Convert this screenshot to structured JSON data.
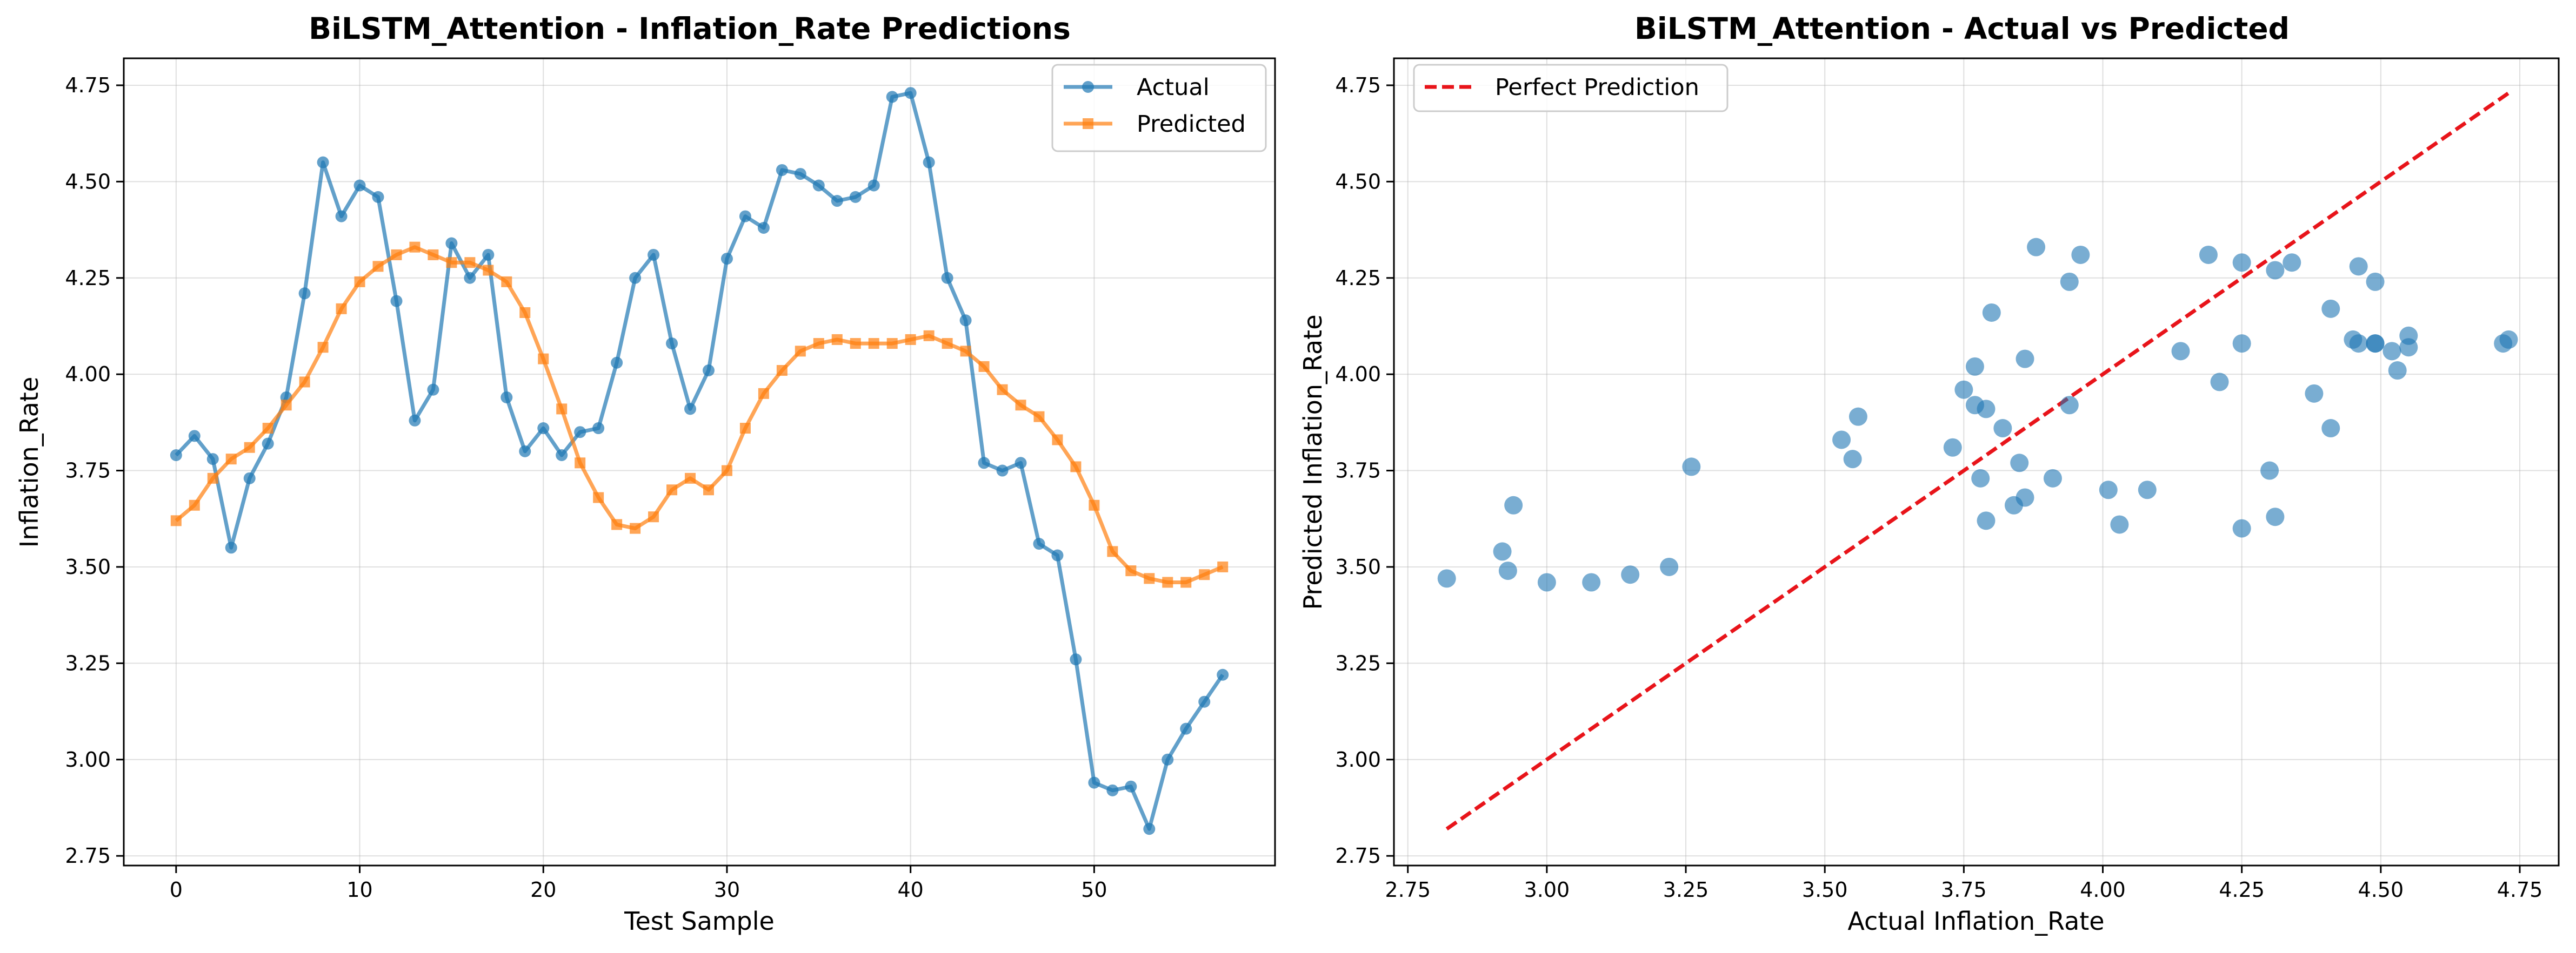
{
  "colors": {
    "actual": "#1f77b4",
    "predicted": "#ff7f0e",
    "perfect": "#e8141a"
  },
  "chart_data": [
    {
      "type": "line",
      "title": "BiLSTM_Attention - Inflation_Rate Predictions",
      "xlabel": "Test Sample",
      "ylabel": "Inflation_Rate",
      "xlim": [
        -2.85,
        59.85
      ],
      "ylim": [
        2.725,
        4.82
      ],
      "xticks": [
        0,
        10,
        20,
        30,
        40,
        50
      ],
      "yticks": [
        2.75,
        3.0,
        3.25,
        3.5,
        3.75,
        4.0,
        4.25,
        4.5,
        4.75
      ],
      "ytick_labels": [
        "2.75",
        "3.00",
        "3.25",
        "3.50",
        "3.75",
        "4.00",
        "4.25",
        "4.50",
        "4.75"
      ],
      "grid": true,
      "legend": "top-right",
      "series": [
        {
          "name": "Actual",
          "marker": "circle",
          "values": [
            3.79,
            3.84,
            3.78,
            3.55,
            3.73,
            3.82,
            3.94,
            4.21,
            4.55,
            4.41,
            4.49,
            4.46,
            4.19,
            3.88,
            3.96,
            4.34,
            4.25,
            4.31,
            3.94,
            3.8,
            3.86,
            3.79,
            3.85,
            3.86,
            4.03,
            4.25,
            4.31,
            4.08,
            3.91,
            4.01,
            4.3,
            4.41,
            4.38,
            4.53,
            4.52,
            4.49,
            4.45,
            4.46,
            4.49,
            4.72,
            4.73,
            4.55,
            4.25,
            4.14,
            3.77,
            3.75,
            3.77,
            3.56,
            3.53,
            3.26,
            2.94,
            2.92,
            2.93,
            2.82,
            3.0,
            3.08,
            3.15,
            3.22
          ]
        },
        {
          "name": "Predicted",
          "marker": "square",
          "values": [
            3.62,
            3.66,
            3.73,
            3.78,
            3.81,
            3.86,
            3.92,
            3.98,
            4.07,
            4.17,
            4.24,
            4.28,
            4.31,
            4.33,
            4.31,
            4.29,
            4.29,
            4.27,
            4.24,
            4.16,
            4.04,
            3.91,
            3.77,
            3.68,
            3.61,
            3.6,
            3.63,
            3.7,
            3.73,
            3.7,
            3.75,
            3.86,
            3.95,
            4.01,
            4.06,
            4.08,
            4.09,
            4.08,
            4.08,
            4.08,
            4.09,
            4.1,
            4.08,
            4.06,
            4.02,
            3.96,
            3.92,
            3.89,
            3.83,
            3.76,
            3.66,
            3.54,
            3.49,
            3.47,
            3.46,
            3.46,
            3.48,
            3.5
          ]
        }
      ]
    },
    {
      "type": "scatter",
      "title": "BiLSTM_Attention - Actual vs Predicted",
      "xlabel": "Actual Inflation_Rate",
      "ylabel": "Predicted Inflation_Rate",
      "xlim": [
        2.725,
        4.82
      ],
      "ylim": [
        2.725,
        4.82
      ],
      "xticks": [
        2.75,
        3.0,
        3.25,
        3.5,
        3.75,
        4.0,
        4.25,
        4.5,
        4.75
      ],
      "xtick_labels": [
        "2.75",
        "3.00",
        "3.25",
        "3.50",
        "3.75",
        "4.00",
        "4.25",
        "4.50",
        "4.75"
      ],
      "yticks": [
        2.75,
        3.0,
        3.25,
        3.5,
        3.75,
        4.0,
        4.25,
        4.5,
        4.75
      ],
      "ytick_labels": [
        "2.75",
        "3.00",
        "3.25",
        "3.50",
        "3.75",
        "4.00",
        "4.25",
        "4.50",
        "4.75"
      ],
      "grid": true,
      "legend": "top-left",
      "reference_line": {
        "name": "Perfect Prediction",
        "from": [
          2.82,
          2.82
        ],
        "to": [
          4.73,
          4.73
        ],
        "style": "dashed"
      },
      "points": {
        "x": [
          3.79,
          3.84,
          3.78,
          3.55,
          3.73,
          3.82,
          3.94,
          4.21,
          4.55,
          4.41,
          4.49,
          4.46,
          4.19,
          3.88,
          3.96,
          4.34,
          4.25,
          4.31,
          3.94,
          3.8,
          3.86,
          3.79,
          3.85,
          3.86,
          4.03,
          4.25,
          4.31,
          4.08,
          3.91,
          4.01,
          4.3,
          4.41,
          4.38,
          4.53,
          4.52,
          4.49,
          4.45,
          4.46,
          4.49,
          4.72,
          4.73,
          4.55,
          4.25,
          4.14,
          3.77,
          3.75,
          3.77,
          3.56,
          3.53,
          3.26,
          2.94,
          2.92,
          2.93,
          2.82,
          3.0,
          3.08,
          3.15,
          3.22
        ],
        "y": [
          3.62,
          3.66,
          3.73,
          3.78,
          3.81,
          3.86,
          3.92,
          3.98,
          4.07,
          4.17,
          4.24,
          4.28,
          4.31,
          4.33,
          4.31,
          4.29,
          4.29,
          4.27,
          4.24,
          4.16,
          4.04,
          3.91,
          3.77,
          3.68,
          3.61,
          3.6,
          3.63,
          3.7,
          3.73,
          3.7,
          3.75,
          3.86,
          3.95,
          4.01,
          4.06,
          4.08,
          4.09,
          4.08,
          4.08,
          4.08,
          4.09,
          4.1,
          4.08,
          4.06,
          4.02,
          3.96,
          3.92,
          3.89,
          3.83,
          3.76,
          3.66,
          3.54,
          3.49,
          3.47,
          3.46,
          3.46,
          3.48,
          3.5
        ]
      }
    }
  ]
}
